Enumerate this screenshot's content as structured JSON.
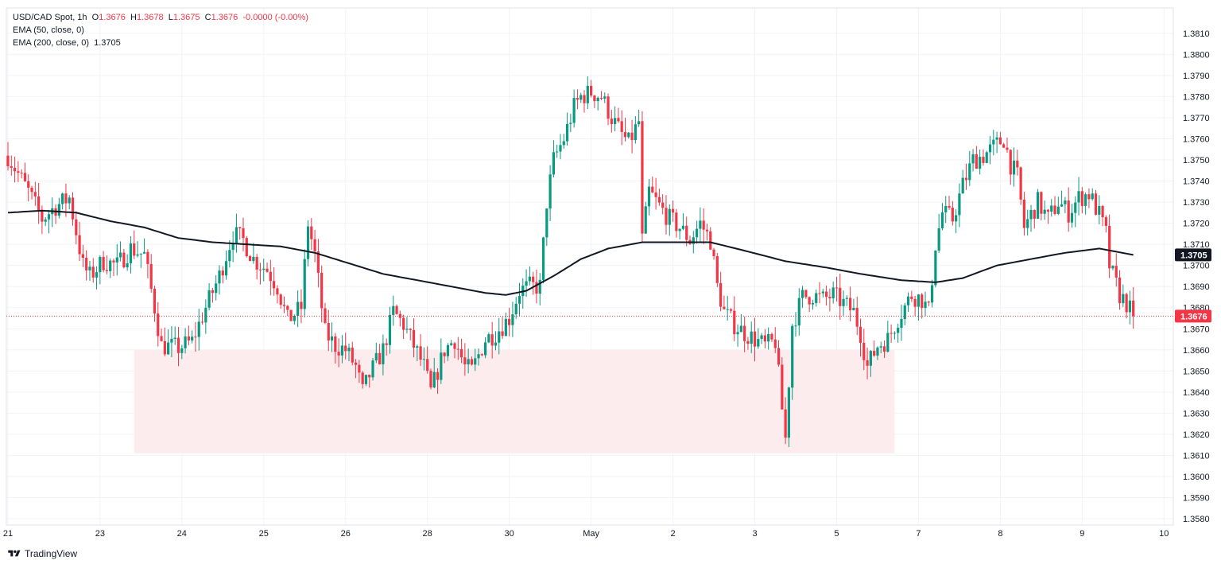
{
  "legend": {
    "symbol": "USD/CAD Spot, 1h",
    "o_label": "O",
    "o": "1.3676",
    "h_label": "H",
    "h": "1.3678",
    "l_label": "L",
    "l": "1.3675",
    "c_label": "C",
    "c": "1.3676",
    "change": "-0.0000 (-0.00%)",
    "ema50": "EMA (50, close, 0)",
    "ema200": "EMA (200, close, 0)",
    "ema200_value": "1.3705"
  },
  "branding": "TradingView",
  "colors": {
    "up": "#089981",
    "down": "#f23645",
    "ema": "#131722",
    "zone": "#fdeced",
    "grid": "#f0f3fa",
    "price_label_bg": "#f23645",
    "ema_label_bg": "#131722"
  },
  "chart_data": {
    "type": "candlestick",
    "title": "USD/CAD Spot, 1h",
    "ylim": [
      1.3577,
      1.3822
    ],
    "y_ticks": [
      "1.3580",
      "1.3590",
      "1.3600",
      "1.3610",
      "1.3620",
      "1.3630",
      "1.3640",
      "1.3650",
      "1.3660",
      "1.3670",
      "1.3680",
      "1.3690",
      "1.3700",
      "1.3710",
      "1.3720",
      "1.3730",
      "1.3740",
      "1.3750",
      "1.3760",
      "1.3770",
      "1.3780",
      "1.3790",
      "1.3800",
      "1.3810"
    ],
    "x_ticks": [
      "21",
      "23",
      "24",
      "25",
      "26",
      "28",
      "30",
      "May",
      "2",
      "3",
      "5",
      "7",
      "8",
      "9",
      "10"
    ],
    "x_tick_bars": [
      0,
      27,
      51,
      75,
      99,
      123,
      147,
      171,
      195,
      219,
      243,
      267,
      291,
      315,
      339
    ],
    "last_price": "1.3676",
    "ema200_last": "1.3705",
    "support_zone": {
      "from": 1.3611,
      "to": 1.366,
      "start_bar": 37,
      "end_bar": 260
    },
    "close_path": [
      [
        0,
        1.3752
      ],
      [
        6,
        1.3735
      ],
      [
        10,
        1.3722
      ],
      [
        14,
        1.3728
      ],
      [
        18,
        1.3732
      ],
      [
        22,
        1.37
      ],
      [
        24,
        1.3695
      ],
      [
        28,
        1.3702
      ],
      [
        32,
        1.37
      ],
      [
        36,
        1.3708
      ],
      [
        40,
        1.3705
      ],
      [
        43,
        1.368
      ],
      [
        45,
        1.3662
      ],
      [
        50,
        1.3661
      ],
      [
        54,
        1.3664
      ],
      [
        58,
        1.368
      ],
      [
        62,
        1.3695
      ],
      [
        66,
        1.3715
      ],
      [
        69,
        1.3712
      ],
      [
        72,
        1.3703
      ],
      [
        76,
        1.3698
      ],
      [
        79,
        1.369
      ],
      [
        82,
        1.3674
      ],
      [
        86,
        1.368
      ],
      [
        88,
        1.372
      ],
      [
        90,
        1.3705
      ],
      [
        93,
        1.3668
      ],
      [
        96,
        1.3662
      ],
      [
        99,
        1.366
      ],
      [
        102,
        1.3652
      ],
      [
        104,
        1.364
      ],
      [
        106,
        1.3648
      ],
      [
        110,
        1.366
      ],
      [
        113,
        1.3678
      ],
      [
        116,
        1.3672
      ],
      [
        119,
        1.3662
      ],
      [
        122,
        1.3652
      ],
      [
        124,
        1.364
      ],
      [
        128,
        1.366
      ],
      [
        131,
        1.3665
      ],
      [
        134,
        1.3652
      ],
      [
        136,
        1.365
      ],
      [
        140,
        1.3665
      ],
      [
        143,
        1.3668
      ],
      [
        147,
        1.3675
      ],
      [
        150,
        1.3688
      ],
      [
        153,
        1.369
      ],
      [
        156,
        1.369
      ],
      [
        158,
        1.373
      ],
      [
        160,
        1.375
      ],
      [
        163,
        1.376
      ],
      [
        166,
        1.3775
      ],
      [
        168,
        1.378
      ],
      [
        171,
        1.3782
      ],
      [
        174,
        1.378
      ],
      [
        177,
        1.377
      ],
      [
        180,
        1.3762
      ],
      [
        182,
        1.3758
      ],
      [
        185,
        1.3768
      ],
      [
        186,
        1.3712
      ],
      [
        188,
        1.3735
      ],
      [
        191,
        1.3728
      ],
      [
        194,
        1.3722
      ],
      [
        197,
        1.3718
      ],
      [
        200,
        1.3712
      ],
      [
        203,
        1.372
      ],
      [
        206,
        1.3712
      ],
      [
        208,
        1.369
      ],
      [
        210,
        1.3678
      ],
      [
        213,
        1.3672
      ],
      [
        216,
        1.3668
      ],
      [
        219,
        1.3665
      ],
      [
        222,
        1.3662
      ],
      [
        225,
        1.3664
      ],
      [
        227,
        1.3632
      ],
      [
        228,
        1.3618
      ],
      [
        230,
        1.3672
      ],
      [
        233,
        1.3685
      ],
      [
        236,
        1.3686
      ],
      [
        239,
        1.3684
      ],
      [
        242,
        1.3686
      ],
      [
        245,
        1.3682
      ],
      [
        248,
        1.3678
      ],
      [
        250,
        1.3668
      ],
      [
        252,
        1.3652
      ],
      [
        255,
        1.3662
      ],
      [
        258,
        1.3665
      ],
      [
        261,
        1.3675
      ],
      [
        265,
        1.3686
      ],
      [
        268,
        1.3684
      ],
      [
        270,
        1.3678
      ],
      [
        272,
        1.371
      ],
      [
        274,
        1.3725
      ],
      [
        277,
        1.3722
      ],
      [
        280,
        1.3738
      ],
      [
        283,
        1.375
      ],
      [
        286,
        1.3752
      ],
      [
        289,
        1.3756
      ],
      [
        292,
        1.376
      ],
      [
        294,
        1.3748
      ],
      [
        296,
        1.3742
      ],
      [
        298,
        1.3718
      ],
      [
        302,
        1.373
      ],
      [
        305,
        1.3722
      ],
      [
        308,
        1.373
      ],
      [
        311,
        1.3725
      ],
      [
        314,
        1.3732
      ],
      [
        317,
        1.3734
      ],
      [
        320,
        1.3724
      ],
      [
        322,
        1.3715
      ],
      [
        323,
        1.37
      ],
      [
        326,
        1.3686
      ],
      [
        328,
        1.3682
      ],
      [
        330,
        1.3676
      ]
    ],
    "ema200_path": [
      [
        0,
        1.3725
      ],
      [
        10,
        1.3726
      ],
      [
        20,
        1.3725
      ],
      [
        30,
        1.3721
      ],
      [
        40,
        1.3718
      ],
      [
        50,
        1.3713
      ],
      [
        60,
        1.3711
      ],
      [
        70,
        1.371
      ],
      [
        80,
        1.3709
      ],
      [
        90,
        1.3706
      ],
      [
        100,
        1.3701
      ],
      [
        110,
        1.3696
      ],
      [
        120,
        1.3693
      ],
      [
        130,
        1.369
      ],
      [
        140,
        1.3687
      ],
      [
        146,
        1.3686
      ],
      [
        152,
        1.3688
      ],
      [
        160,
        1.3695
      ],
      [
        168,
        1.3703
      ],
      [
        176,
        1.3708
      ],
      [
        186,
        1.3711
      ],
      [
        196,
        1.3711
      ],
      [
        206,
        1.3711
      ],
      [
        216,
        1.3707
      ],
      [
        228,
        1.3702
      ],
      [
        240,
        1.3699
      ],
      [
        250,
        1.3696
      ],
      [
        262,
        1.3693
      ],
      [
        272,
        1.3692
      ],
      [
        280,
        1.3694
      ],
      [
        290,
        1.37
      ],
      [
        300,
        1.3703
      ],
      [
        310,
        1.3706
      ],
      [
        320,
        1.3708
      ],
      [
        330,
        1.3705
      ]
    ]
  }
}
